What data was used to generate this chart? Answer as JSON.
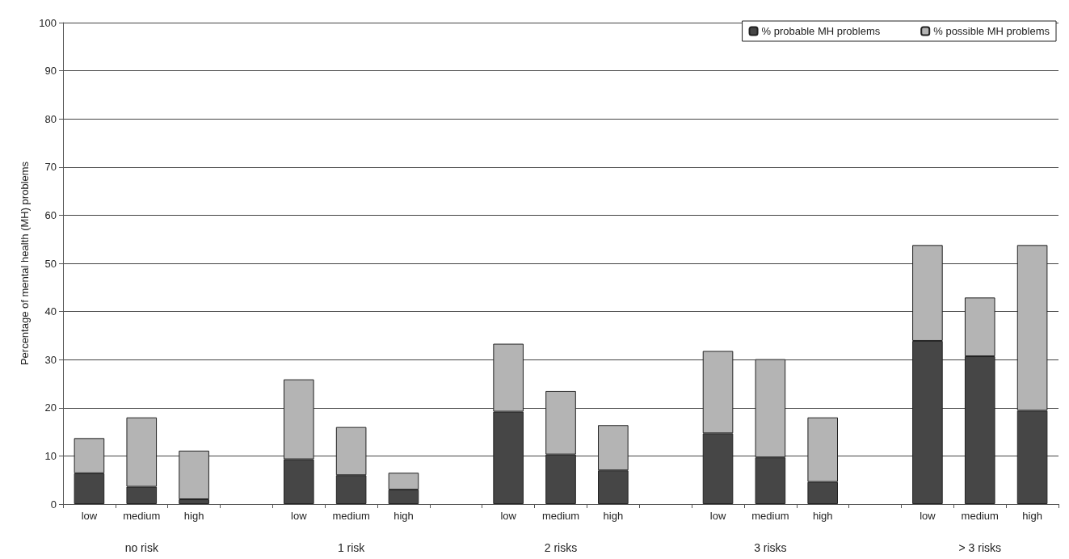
{
  "chart_data": {
    "type": "bar",
    "stacked": true,
    "ylabel": "Percentage of mental health (MH) problems",
    "categories": [
      "low",
      "medium",
      "high",
      null,
      "low",
      "medium",
      "high",
      null,
      "low",
      "medium",
      "high",
      null,
      "low",
      "medium",
      "high",
      null,
      "low",
      "medium",
      "high"
    ],
    "annotations": [
      "no risk",
      "1 risk",
      "2 risks",
      "3 risks",
      "> 3 risks"
    ],
    "series": [
      {
        "name": "% probable MH problems",
        "color": "#464646",
        "values": [
          6.4,
          3.6,
          1.0,
          null,
          9.3,
          6.0,
          3.0,
          null,
          19.2,
          10.3,
          7.0,
          null,
          14.7,
          9.7,
          4.6,
          null,
          33.9,
          30.7,
          19.4
        ]
      },
      {
        "name": "% possible MH problems",
        "color": "#b4b4b4",
        "values": [
          7.3,
          14.4,
          10.1,
          null,
          16.6,
          10.0,
          3.5,
          null,
          14.1,
          13.2,
          9.4,
          null,
          17.1,
          20.4,
          13.4,
          null,
          19.9,
          12.2,
          34.4
        ]
      }
    ],
    "ylim": [
      0,
      100
    ],
    "yticks": [
      0,
      10,
      20,
      30,
      40,
      50,
      60,
      70,
      80,
      90,
      100
    ],
    "grid": "y",
    "legend": "top right"
  }
}
